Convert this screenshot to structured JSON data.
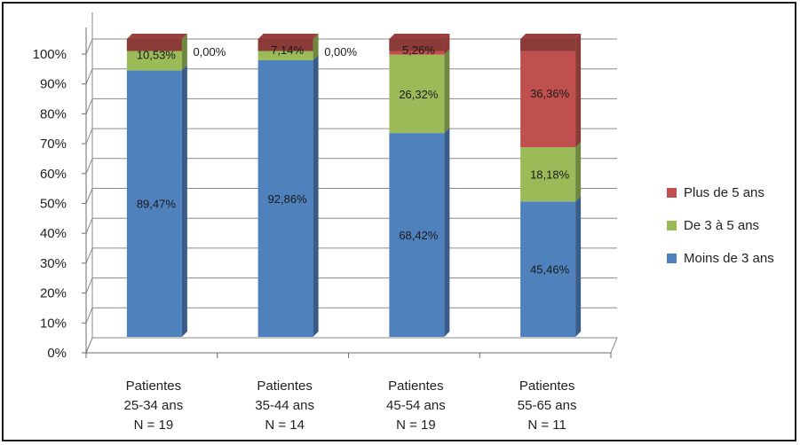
{
  "chart_data": {
    "type": "bar",
    "stacked": true,
    "percent": true,
    "categories": [
      [
        "Patientes",
        "25-34 ans",
        "N = 19"
      ],
      [
        "Patientes",
        "35-44 ans",
        "N = 14"
      ],
      [
        "Patientes",
        "45-54 ans",
        "N = 19"
      ],
      [
        "Patientes",
        "55-65 ans",
        "N = 11"
      ]
    ],
    "series": [
      {
        "name": "Moins de 3 ans",
        "color": "#4f81bd",
        "values": [
          89.47,
          92.86,
          68.42,
          45.46
        ],
        "labels": [
          "89,47%",
          "92,86%",
          "68,42%",
          "45,46%"
        ]
      },
      {
        "name": "De 3 à 5 ans",
        "color": "#9bbb59",
        "values": [
          10.53,
          7.14,
          26.32,
          18.18
        ],
        "labels": [
          "10,53%",
          "7,14%",
          "26,32%",
          "18,18%"
        ]
      },
      {
        "name": "Plus de 5 ans",
        "color": "#c0504d",
        "values": [
          0.0,
          0.0,
          5.26,
          36.36
        ],
        "labels": [
          "0,00%",
          "0,00%",
          "5,26%",
          "36,36%"
        ]
      }
    ],
    "yticks": [
      "0%",
      "10%",
      "20%",
      "30%",
      "40%",
      "50%",
      "60%",
      "70%",
      "80%",
      "90%",
      "100%"
    ],
    "ylim": [
      0,
      100
    ],
    "grid": true,
    "legend_position": "right",
    "legend_order": [
      "Plus de 5 ans",
      "De 3 à 5 ans",
      "Moins de 3 ans"
    ]
  }
}
